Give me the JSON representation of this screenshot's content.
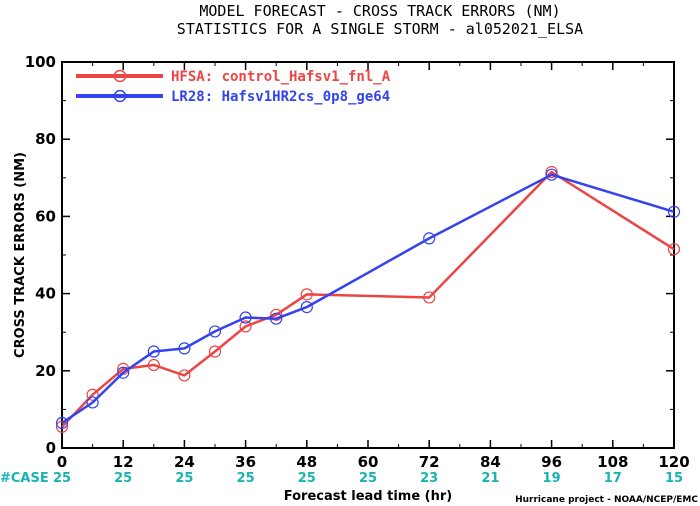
{
  "chart_data": {
    "type": "line",
    "title": "MODEL FORECAST - CROSS TRACK ERRORS (NM)",
    "subtitle": "STATISTICS FOR A SINGLE STORM - al052021_ELSA",
    "xlabel": "Forecast lead time (hr)",
    "ylabel": "CROSS TRACK ERRORS (NM)",
    "xlim": [
      0,
      120
    ],
    "ylim": [
      0,
      100
    ],
    "x_ticks": [
      0,
      12,
      24,
      36,
      48,
      60,
      72,
      84,
      96,
      108,
      120
    ],
    "y_ticks": [
      0,
      20,
      40,
      60,
      80,
      100
    ],
    "grid": false,
    "legend_position": "top-left",
    "series": [
      {
        "name": "HFSA: control_Hafsv1_fnl_A",
        "color": "#ee4444",
        "x": [
          0,
          6,
          12,
          18,
          24,
          30,
          36,
          42,
          48,
          72,
          96,
          120
        ],
        "y": [
          5.5,
          13.8,
          20.5,
          21.5,
          18.8,
          25.0,
          31.5,
          34.5,
          39.8,
          39.0,
          71.5,
          51.5
        ]
      },
      {
        "name": "LR28: Hafsv1HR2cs_0p8_ge64",
        "color": "#3344ee",
        "x": [
          0,
          6,
          12,
          18,
          24,
          30,
          36,
          42,
          48,
          72,
          96,
          120
        ],
        "y": [
          6.5,
          11.8,
          19.5,
          25.0,
          25.8,
          30.2,
          33.8,
          33.5,
          36.5,
          54.3,
          70.8,
          61.2
        ]
      }
    ],
    "case_counts": {
      "label": "#CASE",
      "x": [
        0,
        12,
        24,
        36,
        48,
        60,
        72,
        84,
        96,
        108,
        120
      ],
      "values": [
        "25",
        "25",
        "25",
        "25",
        "25",
        "25",
        "23",
        "21",
        "19",
        "17",
        "15"
      ]
    },
    "credit": "Hurricane project - NOAA/NCEP/EMC"
  }
}
